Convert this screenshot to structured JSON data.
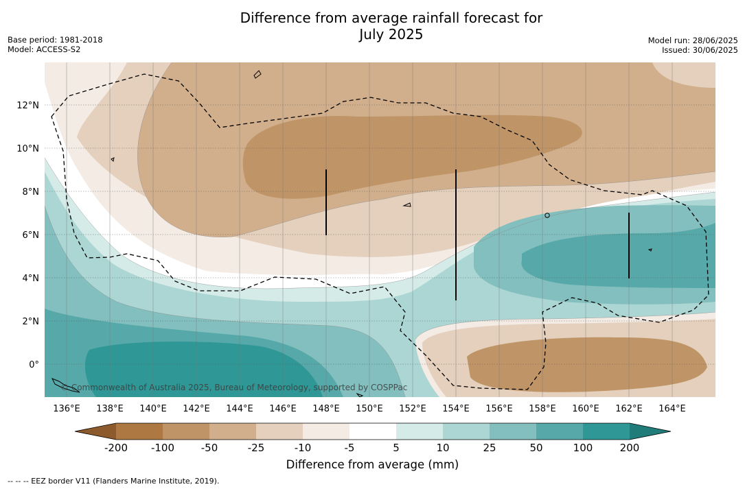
{
  "title_line1": "Difference from average rainfall forecast for",
  "title_line2": "July 2025",
  "base_period": "Base period: 1981-2018",
  "model": "Model: ACCESS-S2",
  "model_run": "Model run: 28/06/2025",
  "issued": "Issued: 30/06/2025",
  "credit": "© Commonwealth of Australia 2025, Bureau of Meteorology, supported by COSPPac",
  "lon_labels": [
    "136°E",
    "138°E",
    "140°E",
    "142°E",
    "144°E",
    "146°E",
    "148°E",
    "150°E",
    "152°E",
    "154°E",
    "156°E",
    "158°E",
    "160°E",
    "162°E",
    "164°E"
  ],
  "lat_labels": [
    "12°N",
    "10°N",
    "8°N",
    "6°N",
    "4°N",
    "2°N",
    "0°"
  ],
  "legend": {
    "title": "Difference from average (mm)",
    "tick_labels": [
      "-200",
      "-100",
      "-50",
      "-25",
      "-10",
      "-5",
      "5",
      "10",
      "25",
      "50",
      "100",
      "200"
    ],
    "colors": [
      "#8c5a2c",
      "#ad7841",
      "#bf9568",
      "#d1af8c",
      "#e4d0bc",
      "#f3ebe4",
      "#ffffff",
      "#d4ebe8",
      "#acd6d4",
      "#82bfbe",
      "#57a9a9",
      "#2f9795",
      "#1f7c79"
    ]
  },
  "footer": "--  --  -- EEZ border V11 (Flanders Marine Institute, 2019)."
}
